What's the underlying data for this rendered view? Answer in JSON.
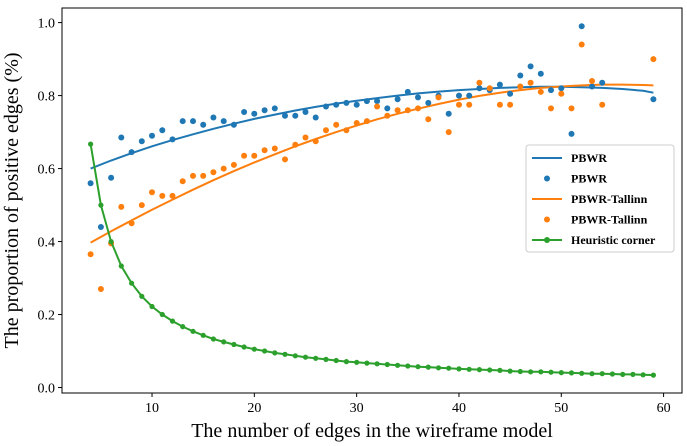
{
  "chart_data": {
    "type": "scatter",
    "title": "",
    "xlabel": "The number of edges in the wireframe model",
    "ylabel": "The proportion of positive edges (%)",
    "xlim": [
      1.2,
      61.8
    ],
    "ylim": [
      -0.015,
      1.04
    ],
    "xticks": [
      10,
      20,
      30,
      40,
      50,
      60
    ],
    "yticks": [
      0.0,
      0.2,
      0.4,
      0.6,
      0.8,
      1.0
    ],
    "xtick_labels": [
      "10",
      "20",
      "30",
      "40",
      "50",
      "60"
    ],
    "ytick_labels": [
      "0.0",
      "0.2",
      "0.4",
      "0.6",
      "0.8",
      "1.0"
    ],
    "legend_position": "center-right",
    "series": [
      {
        "name": "PBWR",
        "kind": "fit-line",
        "color": "#1f77b4",
        "x": [
          4,
          6,
          8,
          10,
          12,
          14,
          16,
          18,
          20,
          22,
          24,
          26,
          28,
          30,
          32,
          34,
          36,
          38,
          40,
          42,
          44,
          46,
          48,
          50,
          52,
          54,
          56,
          58,
          59
        ],
        "y": [
          0.6,
          0.622,
          0.642,
          0.661,
          0.678,
          0.694,
          0.709,
          0.723,
          0.736,
          0.748,
          0.759,
          0.769,
          0.778,
          0.786,
          0.793,
          0.8,
          0.806,
          0.811,
          0.815,
          0.818,
          0.821,
          0.823,
          0.824,
          0.824,
          0.823,
          0.821,
          0.818,
          0.813,
          0.808
        ]
      },
      {
        "name": "PBWR",
        "kind": "points",
        "color": "#1f77b4",
        "x": [
          4,
          5,
          6,
          7,
          8,
          9,
          10,
          11,
          12,
          13,
          14,
          15,
          16,
          17,
          18,
          19,
          20,
          21,
          22,
          23,
          24,
          25,
          26,
          27,
          28,
          29,
          30,
          31,
          32,
          33,
          34,
          35,
          36,
          37,
          38,
          39,
          40,
          41,
          42,
          43,
          44,
          45,
          46,
          47,
          48,
          49,
          50,
          51,
          52,
          53,
          54,
          59
        ],
        "y": [
          0.56,
          0.44,
          0.575,
          0.685,
          0.645,
          0.675,
          0.69,
          0.705,
          0.68,
          0.73,
          0.73,
          0.72,
          0.74,
          0.73,
          0.72,
          0.755,
          0.75,
          0.76,
          0.765,
          0.745,
          0.745,
          0.755,
          0.74,
          0.77,
          0.775,
          0.78,
          0.775,
          0.785,
          0.785,
          0.765,
          0.79,
          0.81,
          0.795,
          0.78,
          0.8,
          0.75,
          0.8,
          0.8,
          0.82,
          0.815,
          0.83,
          0.805,
          0.855,
          0.88,
          0.86,
          0.815,
          0.82,
          0.695,
          0.99,
          0.825,
          0.835,
          0.79
        ]
      },
      {
        "name": "PBWR-Tallinn",
        "kind": "fit-line",
        "color": "#ff7f0e",
        "x": [
          4,
          6,
          8,
          10,
          12,
          14,
          16,
          18,
          20,
          22,
          24,
          26,
          28,
          30,
          32,
          34,
          36,
          38,
          40,
          42,
          44,
          46,
          48,
          50,
          52,
          54,
          56,
          58,
          59
        ],
        "y": [
          0.397,
          0.428,
          0.458,
          0.487,
          0.515,
          0.542,
          0.568,
          0.593,
          0.617,
          0.639,
          0.661,
          0.681,
          0.7,
          0.718,
          0.735,
          0.75,
          0.764,
          0.777,
          0.789,
          0.799,
          0.808,
          0.815,
          0.821,
          0.825,
          0.828,
          0.83,
          0.83,
          0.829,
          0.828
        ]
      },
      {
        "name": "PBWR-Tallinn",
        "kind": "points",
        "color": "#ff7f0e",
        "x": [
          4,
          5,
          6,
          7,
          8,
          9,
          10,
          11,
          12,
          13,
          14,
          15,
          16,
          17,
          18,
          19,
          20,
          21,
          22,
          23,
          24,
          25,
          26,
          27,
          28,
          29,
          30,
          31,
          32,
          33,
          34,
          35,
          36,
          37,
          38,
          39,
          40,
          41,
          42,
          43,
          44,
          45,
          46,
          47,
          48,
          49,
          50,
          51,
          52,
          53,
          54,
          59
        ],
        "y": [
          0.365,
          0.27,
          0.395,
          0.495,
          0.45,
          0.5,
          0.535,
          0.525,
          0.525,
          0.565,
          0.58,
          0.58,
          0.59,
          0.6,
          0.61,
          0.635,
          0.635,
          0.65,
          0.655,
          0.625,
          0.665,
          0.685,
          0.675,
          0.705,
          0.72,
          0.705,
          0.725,
          0.73,
          0.77,
          0.745,
          0.76,
          0.76,
          0.765,
          0.735,
          0.795,
          0.7,
          0.775,
          0.775,
          0.835,
          0.82,
          0.775,
          0.775,
          0.825,
          0.835,
          0.81,
          0.765,
          0.805,
          0.765,
          0.94,
          0.84,
          0.775,
          0.9
        ]
      },
      {
        "name": "Heuristic corner",
        "kind": "line-markers",
        "color": "#2ca02c",
        "x": [
          4,
          5,
          6,
          7,
          8,
          9,
          10,
          11,
          12,
          13,
          14,
          15,
          16,
          17,
          18,
          19,
          20,
          21,
          22,
          23,
          24,
          25,
          26,
          27,
          28,
          29,
          30,
          31,
          32,
          33,
          34,
          35,
          36,
          37,
          38,
          39,
          40,
          41,
          42,
          43,
          44,
          45,
          46,
          47,
          48,
          49,
          50,
          51,
          52,
          53,
          54,
          55,
          56,
          57,
          58,
          59
        ],
        "y": [
          0.667,
          0.5,
          0.4,
          0.333,
          0.286,
          0.25,
          0.222,
          0.2,
          0.182,
          0.167,
          0.154,
          0.143,
          0.133,
          0.125,
          0.118,
          0.111,
          0.105,
          0.1,
          0.095,
          0.091,
          0.087,
          0.083,
          0.08,
          0.077,
          0.074,
          0.071,
          0.069,
          0.067,
          0.065,
          0.063,
          0.061,
          0.059,
          0.057,
          0.056,
          0.054,
          0.053,
          0.051,
          0.05,
          0.049,
          0.048,
          0.047,
          0.045,
          0.044,
          0.043,
          0.043,
          0.042,
          0.041,
          0.04,
          0.039,
          0.038,
          0.038,
          0.037,
          0.036,
          0.036,
          0.035,
          0.034
        ]
      }
    ]
  }
}
